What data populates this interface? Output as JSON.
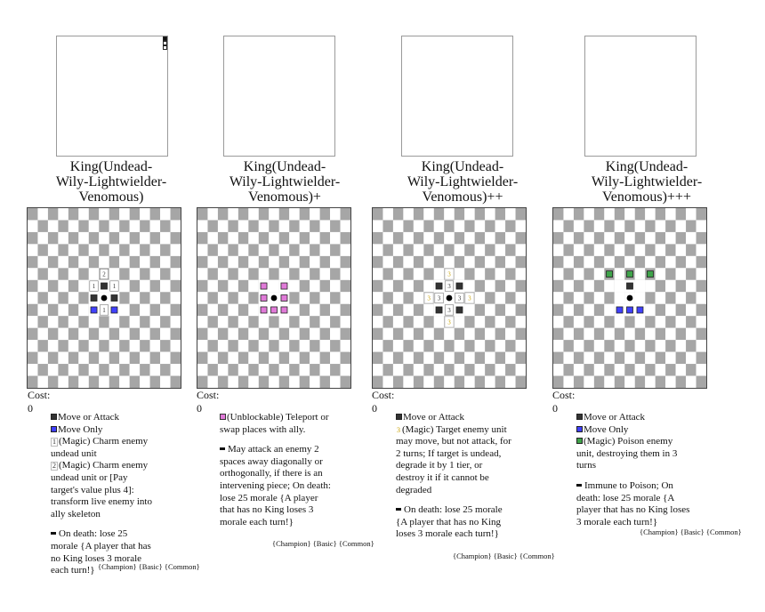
{
  "colors": {
    "dark_square": "#a6a6a6",
    "light_square": "#ffffff",
    "move_attack": "#333333",
    "move_only": "#4040ff",
    "teleport": "#e07ad8",
    "poison": "#3fa34a",
    "magic_number": "#c8a000"
  },
  "cards": [
    {
      "title": "King(Undead-\nWily-Lightwielder-\nVenomous)",
      "cost": "Cost: 0",
      "legend": [
        {
          "icon": "move-attack-icon",
          "text": "Move or Attack"
        },
        {
          "icon": "move-only-icon",
          "text": "Move Only"
        },
        {
          "icon": "magic-1-icon",
          "num": "1",
          "text": "(Magic) Charm enemy undead unit"
        },
        {
          "icon": "magic-2-icon",
          "num": "2",
          "text": "(Magic) Charm enemy undead unit or [Pay target's value plus 4]: transform live enemy into ally skeleton"
        }
      ],
      "death": "On death: lose 25 morale {A player that has no King loses 3 morale each turn!}",
      "tags": "{Champion} {Basic} {Common}"
    },
    {
      "title": "King(Undead-\nWily-Lightwielder-\nVenomous)+",
      "cost": "Cost: 0",
      "legend": [
        {
          "icon": "teleport-icon",
          "text": "(Unblockable) Teleport or swap places with ally."
        }
      ],
      "death": "May attack an enemy 2 spaces away diagonally or orthogonally, if there is an intervening piece; On death: lose 25 morale {A player that has no King loses 3 morale each turn!}",
      "tags": "{Champion} {Basic} {Common}"
    },
    {
      "title": "King(Undead-\nWily-Lightwielder-\nVenomous)++",
      "cost": "Cost: 0",
      "legend": [
        {
          "icon": "move-attack-icon",
          "text": "Move or Attack"
        },
        {
          "icon": "magic-3-icon",
          "num": "3",
          "text": "(Magic) Target enemy unit may move, but not attack, for 2 turns; If target is undead, degrade it by 1 tier, or destroy it if it cannot be degraded"
        }
      ],
      "death": "On death: lose 25 morale {A player that has no King loses 3 morale each turn!}",
      "tags": "{Champion} {Basic} {Common}"
    },
    {
      "title": "King(Undead-\nWily-Lightwielder-\nVenomous)+++",
      "cost": "Cost: 0",
      "legend": [
        {
          "icon": "move-attack-icon",
          "text": "Move or Attack"
        },
        {
          "icon": "move-only-icon",
          "text": "Move Only"
        },
        {
          "icon": "poison-icon",
          "text": "(Magic) Poison enemy unit, destroying them in 3 turns"
        }
      ],
      "death": "Immune to Poison; On death: lose 25 morale {A player that has no King loses 3 morale each turn!}",
      "tags": "{Champion} {Basic} {Common}"
    }
  ],
  "boards": [
    {
      "marks": [
        {
          "col": 7,
          "row": 5,
          "type": "num",
          "label": "2"
        },
        {
          "col": 6,
          "row": 6,
          "type": "num",
          "label": "1"
        },
        {
          "col": 7,
          "row": 6,
          "type": "dark"
        },
        {
          "col": 8,
          "row": 6,
          "type": "num",
          "label": "1"
        },
        {
          "col": 6,
          "row": 7,
          "type": "dark"
        },
        {
          "col": 8,
          "row": 7,
          "type": "dark"
        },
        {
          "col": 6,
          "row": 8,
          "type": "blue"
        },
        {
          "col": 7,
          "row": 8,
          "type": "num",
          "label": "1"
        },
        {
          "col": 8,
          "row": 8,
          "type": "blue"
        }
      ]
    },
    {
      "marks": [
        {
          "col": 6,
          "row": 6,
          "type": "pink"
        },
        {
          "col": 8,
          "row": 6,
          "type": "pink"
        },
        {
          "col": 6,
          "row": 7,
          "type": "pink"
        },
        {
          "col": 8,
          "row": 7,
          "type": "pink"
        },
        {
          "col": 6,
          "row": 8,
          "type": "pink"
        },
        {
          "col": 7,
          "row": 8,
          "type": "pink"
        },
        {
          "col": 8,
          "row": 8,
          "type": "pink"
        }
      ]
    },
    {
      "marks": [
        {
          "col": 7,
          "row": 5,
          "type": "gold",
          "label": "3"
        },
        {
          "col": 6,
          "row": 6,
          "type": "dark"
        },
        {
          "col": 7,
          "row": 6,
          "type": "num",
          "label": "3"
        },
        {
          "col": 8,
          "row": 6,
          "type": "dark"
        },
        {
          "col": 5,
          "row": 7,
          "type": "gold",
          "label": "3"
        },
        {
          "col": 6,
          "row": 7,
          "type": "num",
          "label": "3"
        },
        {
          "col": 8,
          "row": 7,
          "type": "num",
          "label": "3"
        },
        {
          "col": 9,
          "row": 7,
          "type": "gold",
          "label": "3"
        },
        {
          "col": 6,
          "row": 8,
          "type": "dark"
        },
        {
          "col": 7,
          "row": 8,
          "type": "num",
          "label": "3"
        },
        {
          "col": 8,
          "row": 8,
          "type": "dark"
        },
        {
          "col": 7,
          "row": 9,
          "type": "gold",
          "label": "3"
        }
      ]
    },
    {
      "marks": [
        {
          "col": 5,
          "row": 5,
          "type": "green"
        },
        {
          "col": 7,
          "row": 5,
          "type": "green"
        },
        {
          "col": 9,
          "row": 5,
          "type": "green"
        },
        {
          "col": 7,
          "row": 6,
          "type": "dark"
        },
        {
          "col": 6,
          "row": 8,
          "type": "blue"
        },
        {
          "col": 7,
          "row": 8,
          "type": "blue"
        },
        {
          "col": 8,
          "row": 8,
          "type": "blue"
        }
      ]
    }
  ]
}
